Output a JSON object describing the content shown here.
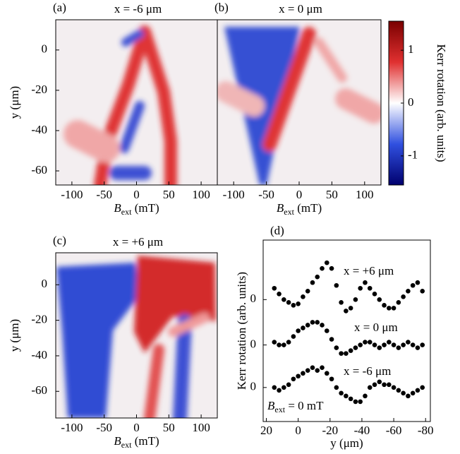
{
  "chart_data": [
    {
      "type": "heatmap",
      "panel_label": "(a)",
      "title": "x = -6 μm",
      "xlabel": {
        "symbol": "B",
        "subscript": "ext",
        "unit": " (mT)"
      },
      "ylabel": "y (μm)",
      "xlim": [
        -125,
        125
      ],
      "xticks": [
        -100,
        -50,
        0,
        50,
        100
      ],
      "ylim": [
        -67,
        15
      ],
      "yticks": [
        0,
        -20,
        -40,
        -60
      ]
    },
    {
      "type": "heatmap",
      "panel_label": "(b)",
      "title": "x = 0 μm",
      "xlabel": {
        "symbol": "B",
        "subscript": "ext",
        "unit": " (mT)"
      },
      "xlim": [
        -125,
        125
      ],
      "xticks": [
        -100,
        -50,
        0,
        50,
        100
      ],
      "ylim": [
        -67,
        15
      ],
      "colorbar": {
        "label": "Kerr rotation (arb. units)",
        "lim": [
          -1.55,
          1.55
        ],
        "ticks": [
          1,
          0,
          -1
        ]
      }
    },
    {
      "type": "heatmap",
      "panel_label": "(c)",
      "title": "x = +6 μm",
      "xlabel": {
        "symbol": "B",
        "subscript": "ext",
        "unit": " (mT)"
      },
      "ylabel": "y (μm)",
      "xlim": [
        -125,
        125
      ],
      "xticks": [
        -100,
        -50,
        0,
        50,
        100
      ],
      "ylim": [
        -75,
        18
      ],
      "yticks": [
        0,
        -20,
        -40,
        -60
      ]
    },
    {
      "type": "scatter",
      "panel_label": "(d)",
      "ylabel": "Kerr rotation (arb. units)",
      "xlabel": "y (μm)",
      "xlim": [
        22,
        -83
      ],
      "xticks": [
        20,
        0,
        -20,
        -40,
        -60,
        -80
      ],
      "annotation": {
        "symbol": "B",
        "subscript": "ext",
        "text": " = 0 mT"
      },
      "x": [
        15,
        12,
        9,
        6,
        3,
        0,
        -3,
        -6,
        -9,
        -12,
        -15,
        -18,
        -21,
        -24,
        -27,
        -30,
        -33,
        -36,
        -39,
        -42,
        -45,
        -48,
        -51,
        -54,
        -57,
        -60,
        -63,
        -66,
        -69,
        -72,
        -75,
        -78
      ],
      "series": [
        {
          "name": "x = +6 μm",
          "color": "#000000",
          "ylim": [
            -4.3,
            2.1
          ],
          "yticks": [
            0
          ],
          "values": [
            0.4,
            0.2,
            0,
            -0.1,
            -0.2,
            -0.15,
            0.1,
            0.3,
            0.6,
            0.8,
            1.1,
            1.3,
            1.1,
            0.5,
            -0.1,
            -0.4,
            -0.3,
            0,
            0.4,
            0.6,
            0.4,
            0.2,
            0,
            -0.2,
            -0.3,
            -0.3,
            -0.1,
            0.1,
            0.3,
            0.5,
            0.6,
            0.3
          ]
        },
        {
          "name": "x =  0 μm",
          "color": "#000000",
          "ylim": [
            -2.7,
            3.7
          ],
          "yticks": [
            0
          ],
          "values": [
            0.1,
            0,
            0,
            0.1,
            0.3,
            0.5,
            0.6,
            0.7,
            0.8,
            0.8,
            0.7,
            0.5,
            0.2,
            -0.1,
            -0.3,
            -0.3,
            -0.2,
            -0.1,
            0,
            0.1,
            0.1,
            0,
            -0.1,
            0,
            0.1,
            0,
            -0.1,
            0,
            0.1,
            0,
            -0.1,
            0
          ]
        },
        {
          "name": "x = -6 μm",
          "color": "#000000",
          "ylim": [
            -1.2,
            5.2
          ],
          "yticks": [
            0
          ],
          "values": [
            0,
            -0.1,
            0,
            0.1,
            0.3,
            0.4,
            0.5,
            0.6,
            0.7,
            0.6,
            0.7,
            0.5,
            0.3,
            0,
            -0.2,
            -0.3,
            -0.4,
            -0.5,
            -0.5,
            -0.3,
            0,
            0.1,
            0.2,
            0.1,
            0.1,
            0,
            -0.1,
            -0.2,
            -0.3,
            -0.2,
            -0.1,
            0
          ]
        }
      ]
    }
  ]
}
